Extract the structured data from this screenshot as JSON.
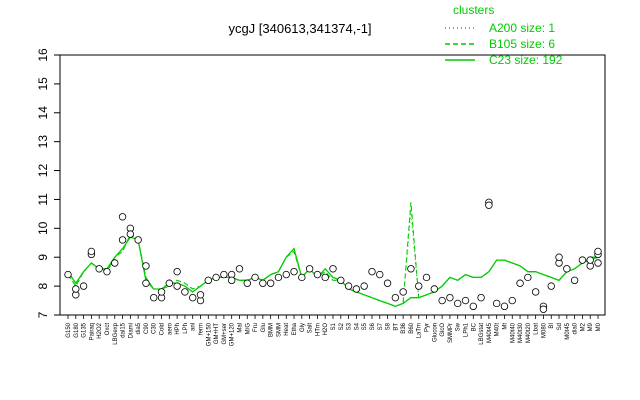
{
  "chart_data": {
    "type": "line",
    "title": "ycgJ [340613,341374,-1]",
    "xlabel": "",
    "ylabel": "",
    "ylim": [
      7,
      16
    ],
    "yticks": [
      7,
      8,
      9,
      10,
      11,
      12,
      13,
      14,
      15,
      16
    ],
    "x_tick_labels": [
      "G150",
      "G180",
      "G135",
      "Pairaq",
      "H2O2",
      "Oxct",
      "LBGexp",
      "dal15",
      "Diami",
      "dia5",
      "C90",
      "C30",
      "Cold",
      "aero",
      "HPh",
      "LPh",
      "anl",
      "ferm",
      "GM+150",
      "GM+HT",
      "GM+ser",
      "GM+120",
      "Mal",
      "M/G",
      "Fru",
      "Glu",
      "BMM",
      "SMM",
      "Heat",
      "Etha",
      "Gly",
      "Salt",
      "HTm",
      "H2O",
      "S1",
      "S2",
      "S3",
      "S4",
      "S5",
      "S6",
      "S7",
      "S8",
      "BT",
      "B36",
      "B60",
      "LaTm",
      "Pyr",
      "Glucon",
      "GlcO",
      "SMMPr",
      "Sw",
      "LPh1",
      "BC",
      "LBGstat",
      "M40t45",
      "M40t",
      "Mt",
      "M40t40",
      "M40t30",
      "M40t20",
      "Lbat",
      "M080",
      "BI",
      "Sd",
      "M0t45",
      "dia0",
      "M2",
      "M9",
      "M0"
    ],
    "legend": {
      "title": "clusters",
      "position": "top-right",
      "entries": [
        {
          "label": "A200 size: 1",
          "style": "dotted"
        },
        {
          "label": "B105 size: 6",
          "style": "dashed"
        },
        {
          "label": "C23 size: 192",
          "style": "solid"
        }
      ]
    },
    "series": [
      {
        "name": "C23 size: 192",
        "style": "solid",
        "values": [
          8.5,
          8.1,
          8.5,
          8.8,
          8.6,
          8.6,
          9.0,
          9.3,
          9.7,
          9.6,
          8.2,
          7.9,
          7.9,
          8.1,
          8.1,
          8.0,
          7.8,
          8.0,
          8.2,
          8.3,
          8.3,
          8.3,
          8.2,
          8.2,
          8.3,
          8.2,
          8.4,
          8.5,
          9.0,
          9.3,
          8.3,
          8.6,
          8.3,
          8.6,
          8.3,
          8.2,
          7.9,
          7.8,
          7.7,
          7.6,
          7.5,
          7.4,
          7.3,
          7.4,
          7.6,
          7.6,
          7.7,
          7.8,
          8.0,
          8.3,
          8.2,
          8.4,
          8.3,
          8.3,
          8.5,
          8.9,
          8.9,
          8.8,
          8.7,
          8.5,
          8.5,
          8.4,
          8.3,
          8.2,
          8.5,
          8.6,
          8.8,
          9.0,
          9.0
        ]
      },
      {
        "name": "B105 size: 6",
        "style": "dashed",
        "values": [
          8.4,
          8.0,
          8.5,
          8.8,
          8.6,
          8.5,
          9.0,
          9.2,
          9.8,
          9.6,
          8.3,
          7.9,
          7.9,
          8.0,
          8.2,
          8.1,
          7.9,
          8.0,
          8.2,
          8.3,
          8.3,
          8.3,
          8.2,
          8.2,
          8.3,
          8.2,
          8.4,
          8.5,
          9.0,
          9.2,
          8.3,
          8.6,
          8.3,
          8.5,
          8.2,
          8.2,
          7.9,
          7.8,
          7.7,
          7.6,
          7.5,
          7.4,
          7.3,
          7.4,
          10.9,
          7.6,
          7.7,
          7.8,
          8.0,
          8.3,
          8.2,
          8.4,
          8.3,
          8.3,
          8.5,
          8.9,
          8.9,
          8.8,
          8.7,
          8.5,
          8.5,
          8.4,
          8.3,
          8.2,
          8.5,
          8.6,
          8.8,
          8.9,
          9.0
        ]
      },
      {
        "name": "A200 size: 1",
        "style": "dotted",
        "values": [
          8.4,
          8.0,
          8.5,
          8.8,
          8.6,
          8.5,
          9.0,
          9.2,
          9.8,
          9.6,
          8.3,
          7.9,
          7.9,
          8.0,
          8.2,
          8.1,
          7.9,
          8.0,
          8.2,
          8.3,
          8.3,
          8.3,
          8.2,
          8.2,
          8.3,
          8.2,
          8.4,
          8.5,
          9.0,
          9.2,
          8.3,
          8.6,
          8.3,
          8.5,
          8.2,
          8.2,
          7.9,
          7.8,
          7.7,
          7.6,
          7.5,
          7.4,
          7.3,
          7.4,
          10.6,
          7.6,
          7.7,
          7.8,
          8.0,
          8.3,
          8.2,
          8.4,
          8.3,
          8.3,
          8.5,
          8.9,
          8.9,
          8.8,
          8.7,
          8.5,
          8.5,
          8.4,
          8.3,
          8.2,
          8.5,
          8.6,
          8.8,
          8.9,
          9.0
        ]
      }
    ],
    "points": [
      {
        "x": 0,
        "y": 8.4
      },
      {
        "x": 1,
        "y": 7.7
      },
      {
        "x": 1,
        "y": 7.9
      },
      {
        "x": 2,
        "y": 8.0
      },
      {
        "x": 3,
        "y": 9.1
      },
      {
        "x": 3,
        "y": 9.2
      },
      {
        "x": 4,
        "y": 8.6
      },
      {
        "x": 5,
        "y": 8.5
      },
      {
        "x": 6,
        "y": 8.8
      },
      {
        "x": 7,
        "y": 9.6
      },
      {
        "x": 7,
        "y": 10.4
      },
      {
        "x": 8,
        "y": 10.0
      },
      {
        "x": 8,
        "y": 9.8
      },
      {
        "x": 9,
        "y": 9.6
      },
      {
        "x": 10,
        "y": 8.7
      },
      {
        "x": 10,
        "y": 8.1
      },
      {
        "x": 11,
        "y": 7.6
      },
      {
        "x": 12,
        "y": 7.6
      },
      {
        "x": 12,
        "y": 7.8
      },
      {
        "x": 13,
        "y": 8.1
      },
      {
        "x": 14,
        "y": 8.0
      },
      {
        "x": 14,
        "y": 8.5
      },
      {
        "x": 15,
        "y": 7.8
      },
      {
        "x": 16,
        "y": 7.6
      },
      {
        "x": 17,
        "y": 7.5
      },
      {
        "x": 17,
        "y": 7.7
      },
      {
        "x": 18,
        "y": 8.2
      },
      {
        "x": 19,
        "y": 8.3
      },
      {
        "x": 20,
        "y": 8.4
      },
      {
        "x": 21,
        "y": 8.4
      },
      {
        "x": 21,
        "y": 8.2
      },
      {
        "x": 22,
        "y": 8.6
      },
      {
        "x": 23,
        "y": 8.1
      },
      {
        "x": 24,
        "y": 8.3
      },
      {
        "x": 25,
        "y": 8.1
      },
      {
        "x": 26,
        "y": 8.1
      },
      {
        "x": 27,
        "y": 8.3
      },
      {
        "x": 28,
        "y": 8.4
      },
      {
        "x": 29,
        "y": 8.5
      },
      {
        "x": 30,
        "y": 8.3
      },
      {
        "x": 31,
        "y": 8.6
      },
      {
        "x": 32,
        "y": 8.4
      },
      {
        "x": 33,
        "y": 8.3
      },
      {
        "x": 34,
        "y": 8.6
      },
      {
        "x": 35,
        "y": 8.2
      },
      {
        "x": 36,
        "y": 8.0
      },
      {
        "x": 37,
        "y": 7.9
      },
      {
        "x": 38,
        "y": 8.0
      },
      {
        "x": 39,
        "y": 8.5
      },
      {
        "x": 40,
        "y": 8.4
      },
      {
        "x": 41,
        "y": 8.1
      },
      {
        "x": 42,
        "y": 7.6
      },
      {
        "x": 43,
        "y": 7.8
      },
      {
        "x": 44,
        "y": 8.6
      },
      {
        "x": 45,
        "y": 8.0
      },
      {
        "x": 46,
        "y": 8.3
      },
      {
        "x": 47,
        "y": 7.9
      },
      {
        "x": 48,
        "y": 7.5
      },
      {
        "x": 49,
        "y": 7.6
      },
      {
        "x": 50,
        "y": 7.4
      },
      {
        "x": 51,
        "y": 7.5
      },
      {
        "x": 52,
        "y": 7.3
      },
      {
        "x": 53,
        "y": 7.6
      },
      {
        "x": 54,
        "y": 10.9
      },
      {
        "x": 54,
        "y": 10.8
      },
      {
        "x": 55,
        "y": 7.4
      },
      {
        "x": 56,
        "y": 7.3
      },
      {
        "x": 57,
        "y": 7.5
      },
      {
        "x": 58,
        "y": 8.1
      },
      {
        "x": 59,
        "y": 8.3
      },
      {
        "x": 60,
        "y": 7.8
      },
      {
        "x": 61,
        "y": 7.3
      },
      {
        "x": 61,
        "y": 7.2
      },
      {
        "x": 62,
        "y": 8.0
      },
      {
        "x": 63,
        "y": 8.8
      },
      {
        "x": 63,
        "y": 9.0
      },
      {
        "x": 64,
        "y": 8.6
      },
      {
        "x": 65,
        "y": 8.2
      },
      {
        "x": 66,
        "y": 8.9
      },
      {
        "x": 67,
        "y": 8.7
      },
      {
        "x": 67,
        "y": 8.9
      },
      {
        "x": 68,
        "y": 9.1
      },
      {
        "x": 68,
        "y": 9.2
      },
      {
        "x": 68,
        "y": 8.8
      }
    ]
  }
}
